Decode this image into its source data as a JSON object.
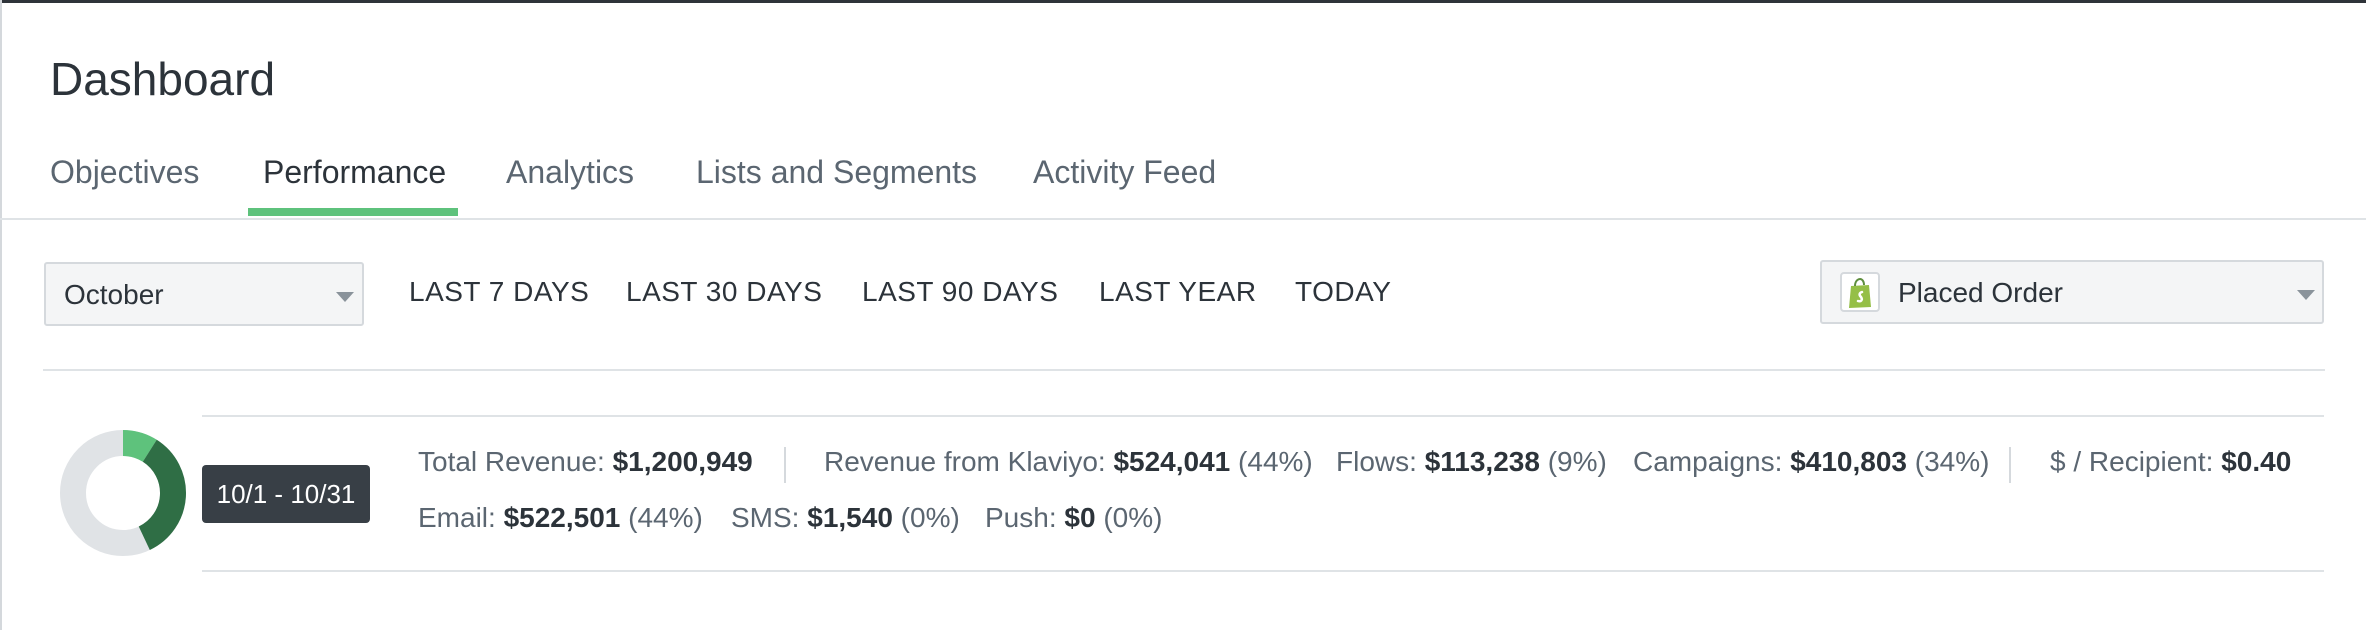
{
  "header": {
    "title": "Dashboard"
  },
  "tabs": [
    {
      "label": "Objectives",
      "active": false
    },
    {
      "label": "Performance",
      "active": true
    },
    {
      "label": "Analytics",
      "active": false
    },
    {
      "label": "Lists and Segments",
      "active": false
    },
    {
      "label": "Activity Feed",
      "active": false
    }
  ],
  "filters": {
    "period_select": {
      "value": "October"
    },
    "ranges": [
      "LAST 7 DAYS",
      "LAST 30 DAYS",
      "LAST 90 DAYS",
      "LAST YEAR",
      "TODAY"
    ],
    "metric_select": {
      "value": "Placed Order",
      "icon": "shopify-bag-icon"
    }
  },
  "summary": {
    "date_range": "10/1 - 10/31",
    "donut": {
      "total_color": "#e0e3e6",
      "flows_fraction": 0.09,
      "campaigns_fraction": 0.34,
      "flows_color": "#5ec27c",
      "campaigns_color": "#2f6e45"
    },
    "row1": [
      {
        "label": "Total Revenue:",
        "value": "$1,200,949",
        "pct": ""
      },
      {
        "label": "Revenue from Klaviyo:",
        "value": "$524,041",
        "pct": "(44%)"
      },
      {
        "label": "Flows:",
        "value": "$113,238",
        "pct": "(9%)"
      },
      {
        "label": "Campaigns:",
        "value": "$410,803",
        "pct": "(34%)"
      },
      {
        "label": "$ / Recipient:",
        "value": "$0.40",
        "pct": ""
      }
    ],
    "row2": [
      {
        "label": "Email:",
        "value": "$522,501",
        "pct": "(44%)"
      },
      {
        "label": "SMS:",
        "value": "$1,540",
        "pct": "(0%)"
      },
      {
        "label": "Push:",
        "value": "$0",
        "pct": "(0%)"
      }
    ]
  }
}
